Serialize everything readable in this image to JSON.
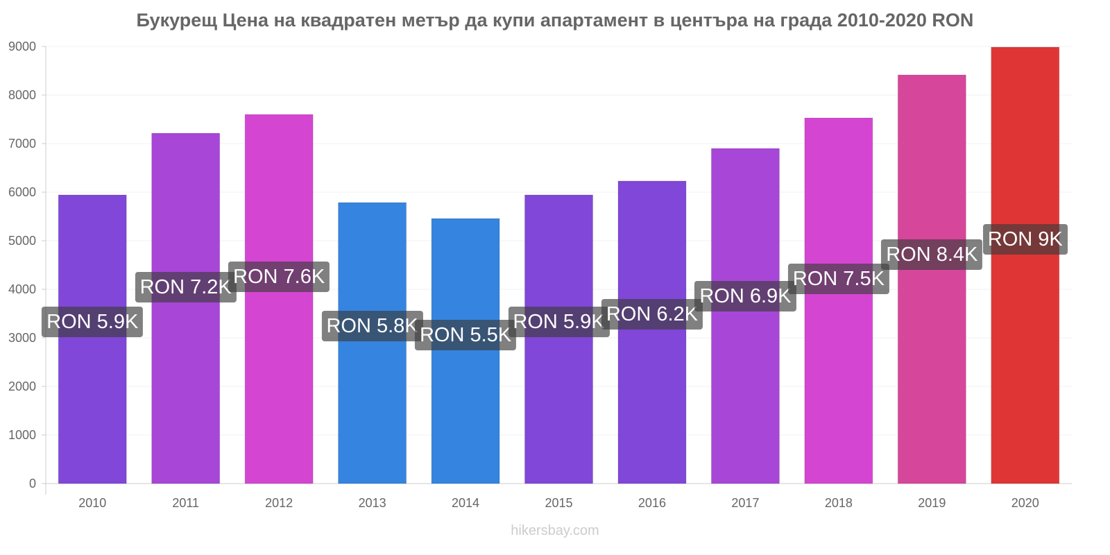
{
  "chart_data": {
    "type": "bar",
    "title": "Букурещ Цена на квадратен метър да купи апартамент в центъра на града 2010-2020 RON",
    "xlabel": "",
    "ylabel": "",
    "ylim": [
      0,
      9000
    ],
    "yticks": [
      0,
      1000,
      2000,
      3000,
      4000,
      5000,
      6000,
      7000,
      8000,
      9000
    ],
    "grid": true,
    "categories": [
      "2010",
      "2011",
      "2012",
      "2013",
      "2014",
      "2015",
      "2016",
      "2017",
      "2018",
      "2019",
      "2020"
    ],
    "values": [
      5943,
      7214,
      7600,
      5786,
      5457,
      5943,
      6229,
      6900,
      7529,
      8414,
      8986
    ],
    "data_labels": [
      "RON 5.9K",
      "RON 7.2K",
      "RON 7.6K",
      "RON 5.8K",
      "RON 5.5K",
      "RON 5.9K",
      "RON 6.2K",
      "RON 6.9K",
      "RON 7.5K",
      "RON 8.4K",
      "RON 9K"
    ],
    "colors": [
      "#8047d8",
      "#a846d8",
      "#d446d2",
      "#3584e0",
      "#3584e0",
      "#8047d8",
      "#8047d8",
      "#a846d8",
      "#d446d2",
      "#d6469a",
      "#e03535"
    ]
  },
  "footer": "hikersbay.com"
}
